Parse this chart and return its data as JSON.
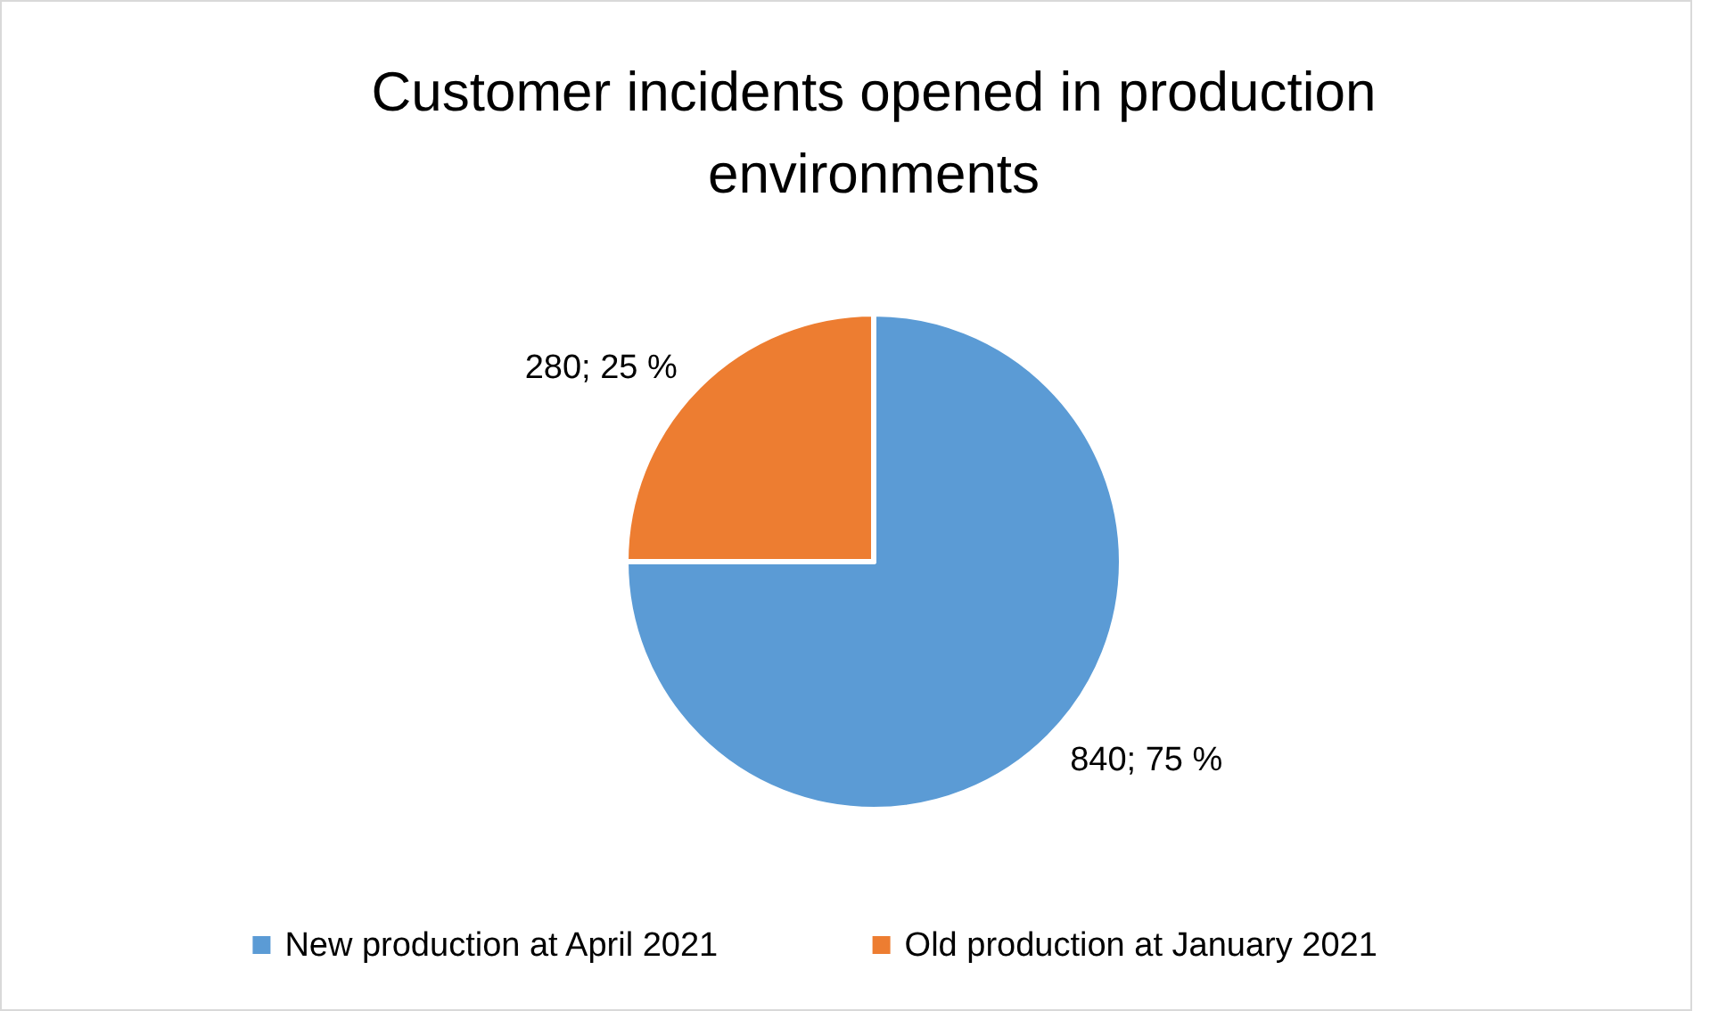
{
  "chart_data": {
    "type": "pie",
    "title": "Customer incidents opened in production environments",
    "categories": [
      "New production at April 2021",
      "Old production at January 2021"
    ],
    "values": [
      840,
      280
    ],
    "colors": [
      "#5b9bd5",
      "#ed7d31"
    ],
    "value_labels": [
      "840; 75 %",
      "280; 25 %"
    ],
    "legend": "bottom"
  }
}
